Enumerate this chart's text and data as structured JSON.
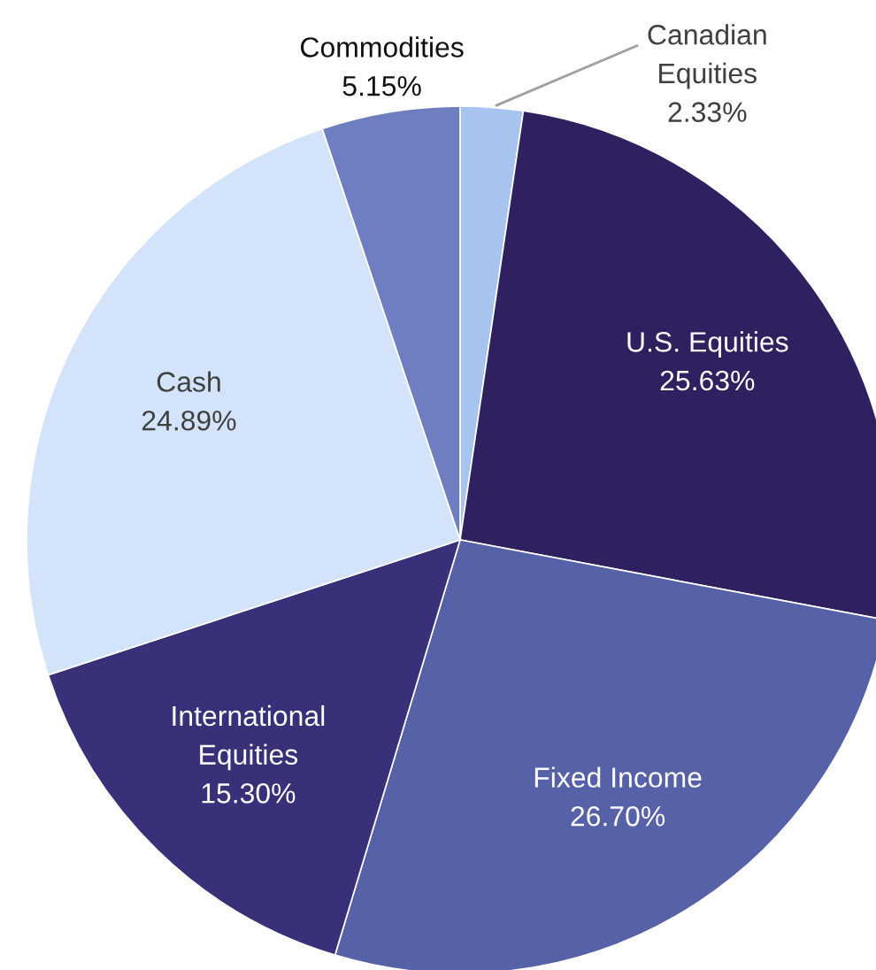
{
  "chart_data": {
    "type": "pie",
    "categories": [
      "Canadian Equities",
      "U.S. Equities",
      "Fixed Income",
      "International Equities",
      "Cash",
      "Commodities"
    ],
    "values": [
      2.33,
      25.63,
      26.7,
      15.3,
      24.89,
      5.15
    ],
    "value_labels": [
      "2.33%",
      "25.63%",
      "26.70%",
      "15.30%",
      "24.89%",
      "5.15%"
    ],
    "colors": [
      "#a6c4ee",
      "#2f215f",
      "#5761a8",
      "#383078",
      "#d3e3f9",
      "#6f7ec0"
    ],
    "legend": false
  }
}
